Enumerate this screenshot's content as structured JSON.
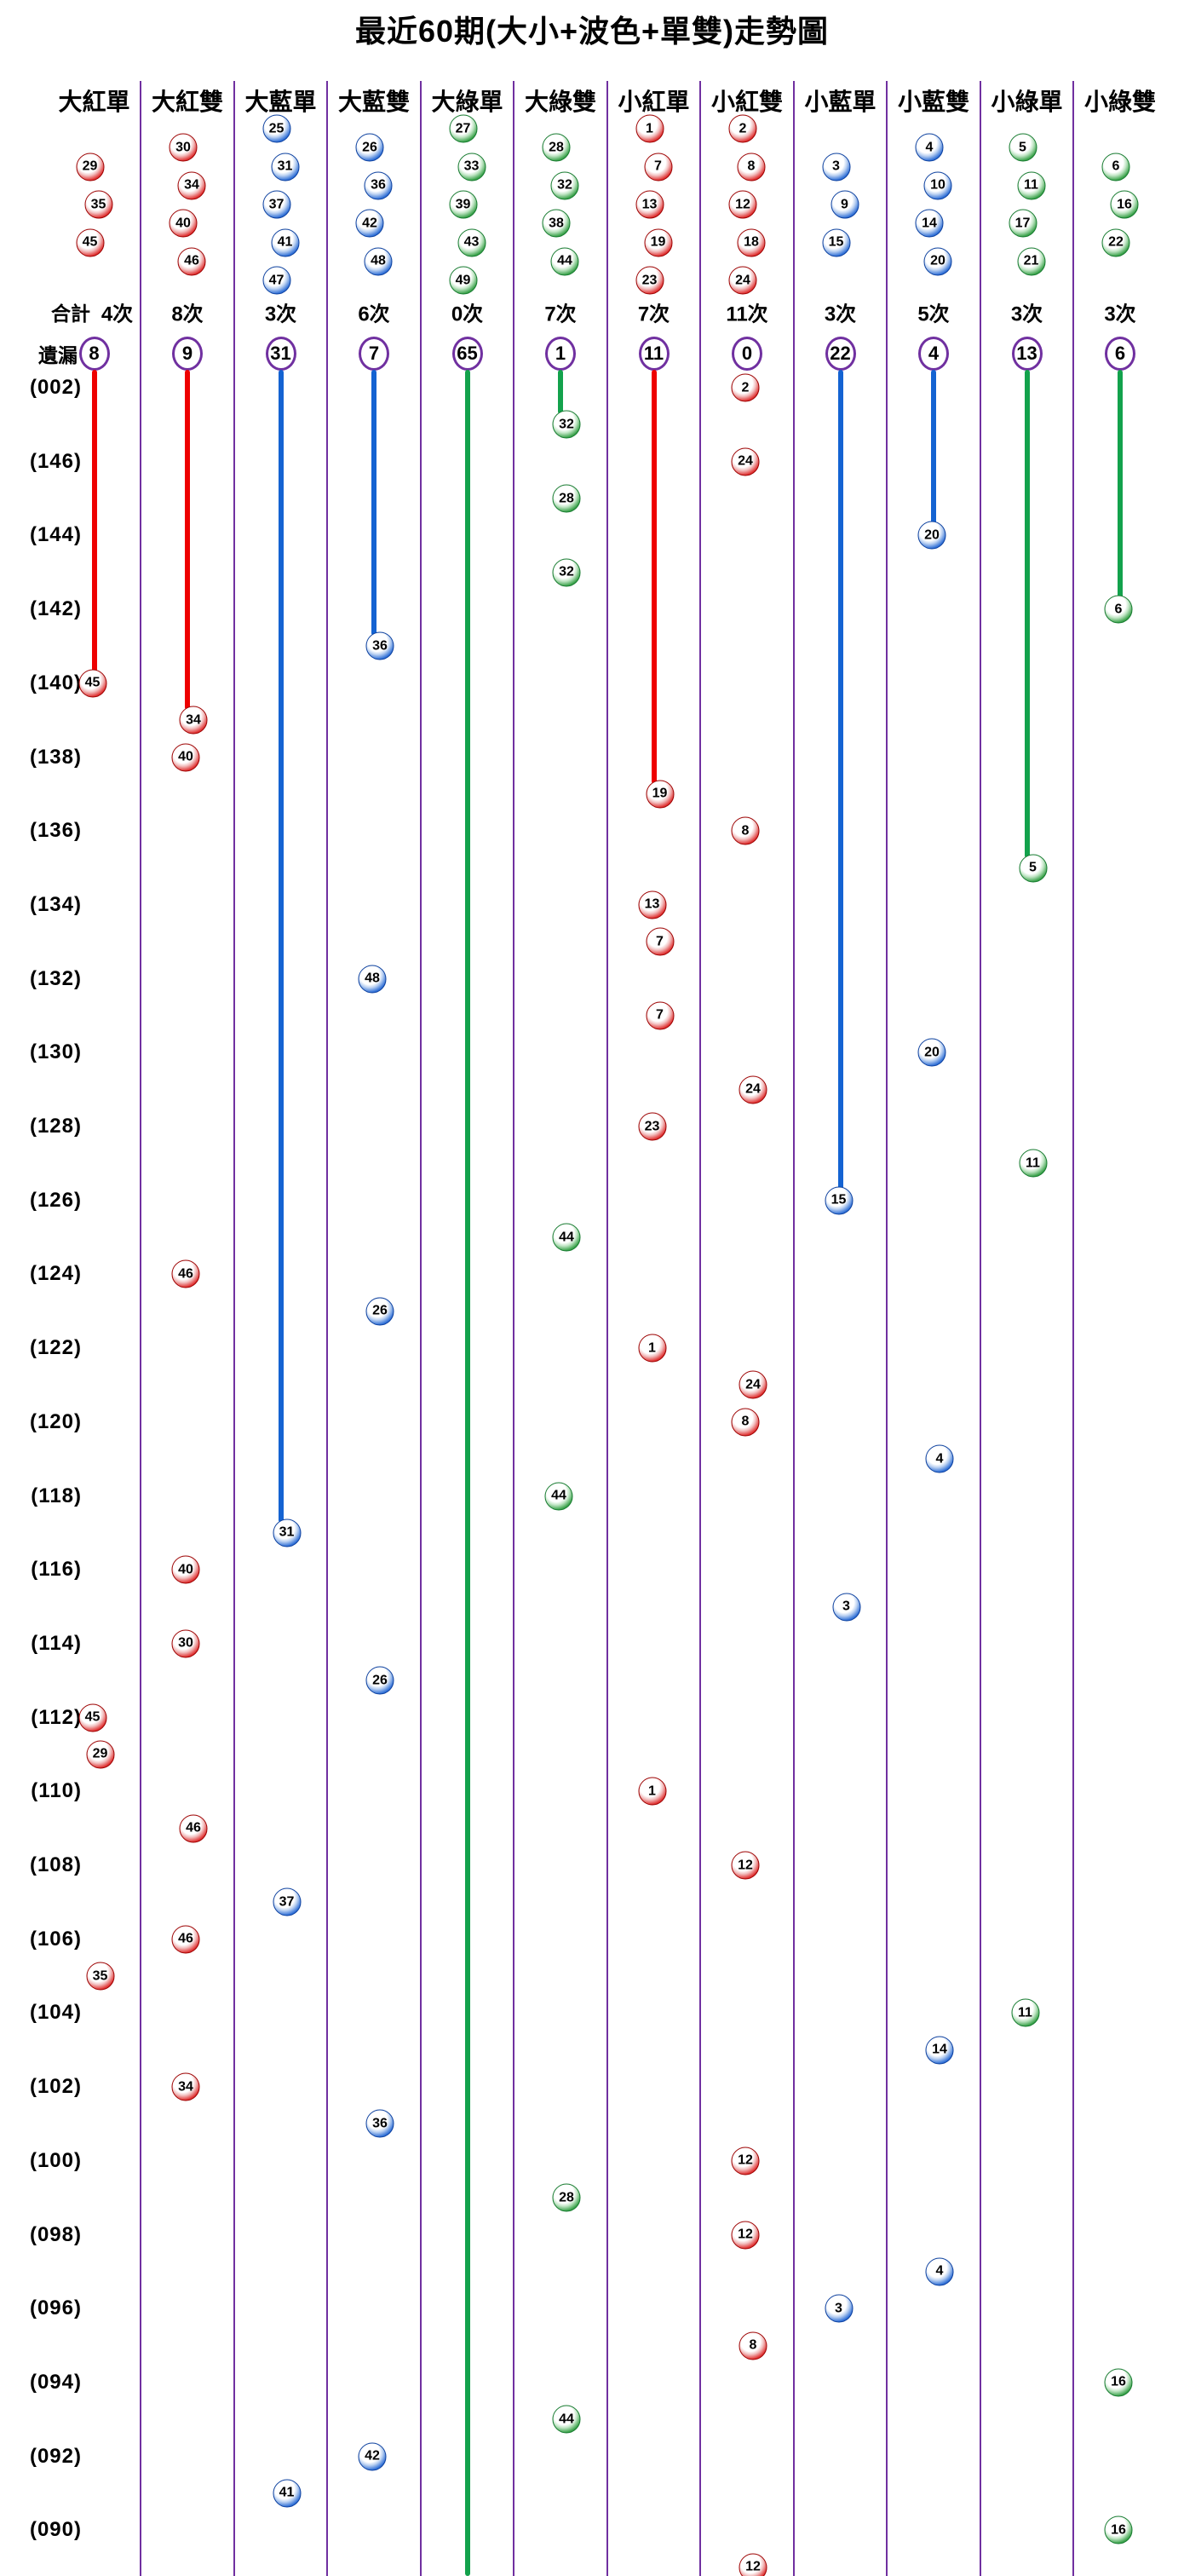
{
  "title": "最近60期(大小+波色+單雙)走勢圖",
  "gutter": {
    "total_label": "合計",
    "missing_label": "遺漏"
  },
  "times_suffix": "次",
  "colors": {
    "line_red": "#ee0000",
    "line_blue": "#1463d2",
    "line_green": "#13a24c",
    "separator_purple": "#7030a0",
    "badge_border_purple": "#7030a0",
    "ball_red": "#e03131",
    "ball_blue": "#2f6fd6",
    "ball_green": "#3aa24a"
  },
  "chart_data": {
    "type": "trend-grid",
    "row_count": 60,
    "row_labels": [
      "(002)",
      "(146)",
      "(144)",
      "(142)",
      "(140)",
      "(138)",
      "(136)",
      "(134)",
      "(132)",
      "(130)",
      "(128)",
      "(126)",
      "(124)",
      "(122)",
      "(120)",
      "(118)",
      "(116)",
      "(114)",
      "(112)",
      "(110)",
      "(108)",
      "(106)",
      "(104)",
      "(102)",
      "(100)",
      "(098)",
      "(096)",
      "(094)",
      "(092)",
      "(090)"
    ],
    "columns": [
      {
        "label": "大紅單",
        "color": "red",
        "legend": [
          29,
          35,
          45
        ],
        "total": 4,
        "missing": 8
      },
      {
        "label": "大紅雙",
        "color": "red",
        "legend": [
          30,
          34,
          40,
          46
        ],
        "total": 8,
        "missing": 9
      },
      {
        "label": "大藍單",
        "color": "blue",
        "legend": [
          25,
          31,
          37,
          41,
          47
        ],
        "total": 3,
        "missing": 31
      },
      {
        "label": "大藍雙",
        "color": "blue",
        "legend": [
          26,
          36,
          42,
          48
        ],
        "total": 6,
        "missing": 7
      },
      {
        "label": "大綠單",
        "color": "green",
        "legend": [
          27,
          33,
          39,
          43,
          49
        ],
        "total": 0,
        "missing": 65
      },
      {
        "label": "大綠雙",
        "color": "green",
        "legend": [
          28,
          32,
          38,
          44
        ],
        "total": 7,
        "missing": 1
      },
      {
        "label": "小紅單",
        "color": "red",
        "legend": [
          1,
          7,
          13,
          19,
          23
        ],
        "total": 7,
        "missing": 11
      },
      {
        "label": "小紅雙",
        "color": "red",
        "legend": [
          2,
          8,
          12,
          18,
          24
        ],
        "total": 11,
        "missing": 0
      },
      {
        "label": "小藍單",
        "color": "blue",
        "legend": [
          3,
          9,
          15
        ],
        "total": 3,
        "missing": 22
      },
      {
        "label": "小藍雙",
        "color": "blue",
        "legend": [
          4,
          10,
          14,
          20
        ],
        "total": 5,
        "missing": 4
      },
      {
        "label": "小綠單",
        "color": "green",
        "legend": [
          5,
          11,
          17,
          21
        ],
        "total": 3,
        "missing": 13
      },
      {
        "label": "小綠雙",
        "color": "green",
        "legend": [
          6,
          16,
          22
        ],
        "total": 3,
        "missing": 6
      }
    ],
    "balls": [
      [
        1,
        8,
        2
      ],
      [
        2,
        6,
        32
      ],
      [
        3,
        8,
        24
      ],
      [
        4,
        6,
        28
      ],
      [
        5,
        10,
        20
      ],
      [
        6,
        6,
        32
      ],
      [
        7,
        12,
        6
      ],
      [
        8,
        4,
        36
      ],
      [
        9,
        1,
        45
      ],
      [
        10,
        2,
        34
      ],
      [
        11,
        2,
        40
      ],
      [
        12,
        7,
        19
      ],
      [
        13,
        8,
        8
      ],
      [
        14,
        11,
        5
      ],
      [
        15,
        7,
        13
      ],
      [
        16,
        7,
        7
      ],
      [
        17,
        4,
        48
      ],
      [
        18,
        7,
        7
      ],
      [
        19,
        10,
        20
      ],
      [
        20,
        8,
        24
      ],
      [
        21,
        7,
        23
      ],
      [
        22,
        11,
        11
      ],
      [
        23,
        9,
        15
      ],
      [
        24,
        6,
        44
      ],
      [
        25,
        2,
        46
      ],
      [
        26,
        4,
        26
      ],
      [
        27,
        7,
        1
      ],
      [
        28,
        8,
        24
      ],
      [
        29,
        8,
        8
      ],
      [
        30,
        10,
        4
      ],
      [
        31,
        6,
        44
      ],
      [
        32,
        3,
        31
      ],
      [
        33,
        2,
        40
      ],
      [
        34,
        9,
        3
      ],
      [
        35,
        2,
        30
      ],
      [
        36,
        4,
        26
      ],
      [
        37,
        1,
        45
      ],
      [
        38,
        1,
        29
      ],
      [
        39,
        7,
        1
      ],
      [
        40,
        2,
        46
      ],
      [
        41,
        8,
        12
      ],
      [
        42,
        3,
        37
      ],
      [
        43,
        2,
        46
      ],
      [
        44,
        1,
        35
      ],
      [
        45,
        11,
        11
      ],
      [
        46,
        10,
        14
      ],
      [
        47,
        2,
        34
      ],
      [
        48,
        4,
        36
      ],
      [
        49,
        8,
        12
      ],
      [
        50,
        6,
        28
      ],
      [
        51,
        8,
        12
      ],
      [
        52,
        10,
        4
      ],
      [
        53,
        9,
        3
      ],
      [
        54,
        8,
        8
      ],
      [
        55,
        12,
        16
      ],
      [
        56,
        6,
        44
      ],
      [
        57,
        4,
        42
      ],
      [
        58,
        3,
        41
      ],
      [
        59,
        12,
        16
      ],
      [
        60,
        8,
        12
      ]
    ]
  }
}
